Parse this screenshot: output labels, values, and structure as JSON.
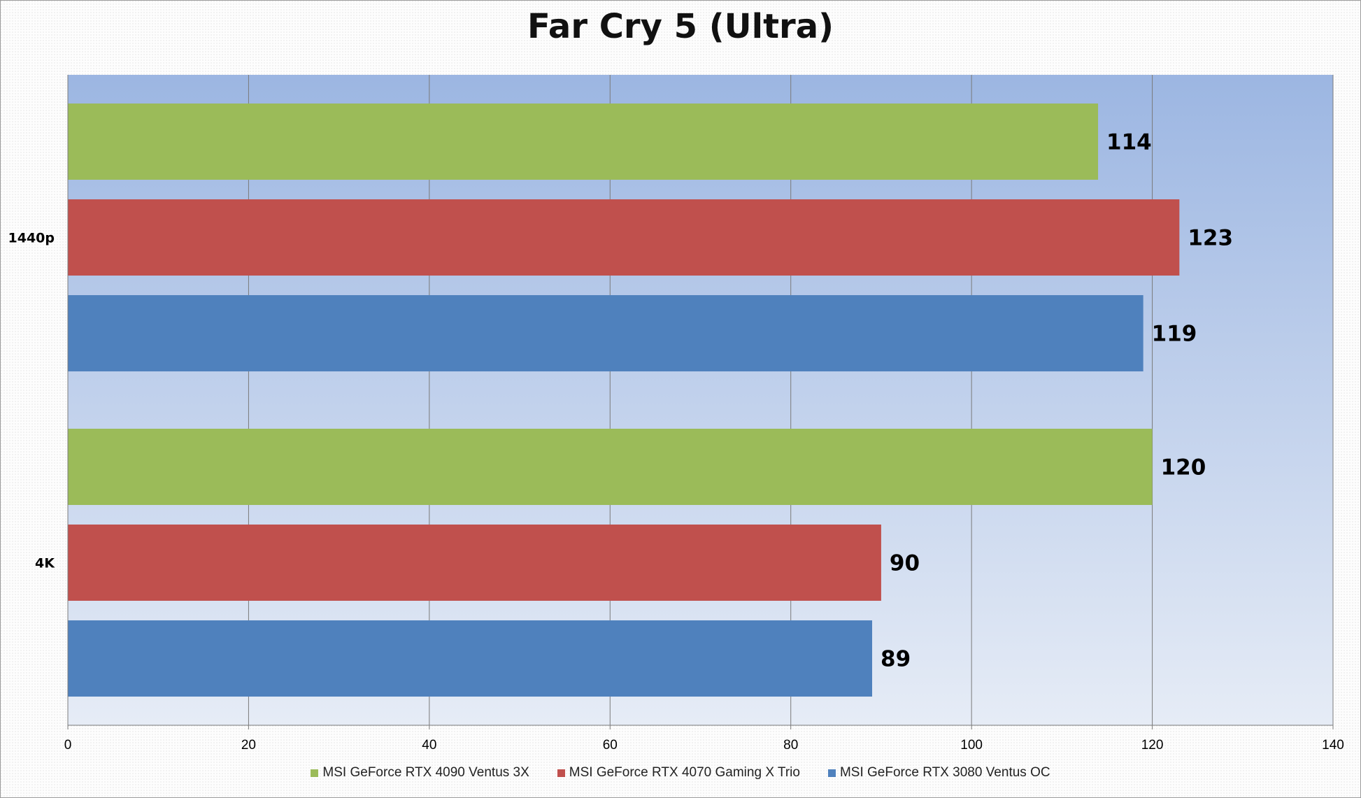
{
  "chart_data": {
    "type": "bar",
    "orientation": "horizontal",
    "title": "Far Cry 5 (Ultra)",
    "categories": [
      "1440p",
      "4K"
    ],
    "series": [
      {
        "name": "MSI GeForce RTX 4090 Ventus 3X",
        "color": "#9bbb59",
        "values": [
          114,
          120
        ]
      },
      {
        "name": "MSI GeForce RTX 4070 Gaming X Trio",
        "color": "#c0504d",
        "values": [
          123,
          90
        ]
      },
      {
        "name": "MSI GeForce RTX 3080 Ventus OC",
        "color": "#4f81bd",
        "values": [
          119,
          89
        ]
      }
    ],
    "xlim": [
      0,
      140
    ],
    "xticks": [
      "0",
      "20",
      "40",
      "60",
      "80",
      "100",
      "120",
      "140"
    ],
    "grid": true,
    "legend_position": "bottom",
    "plot_background": "gradient-blue"
  }
}
